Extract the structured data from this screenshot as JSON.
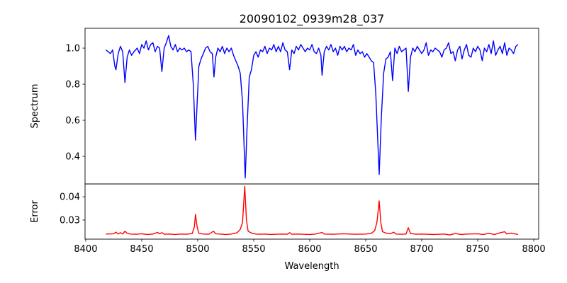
{
  "chart_data": [
    {
      "type": "line",
      "title": "20090102_0939m28_037",
      "xlabel": "",
      "ylabel": "Spectrum",
      "xlim": [
        8399.4,
        8804.4
      ],
      "ylim": [
        0.247,
        1.11
      ],
      "yticks": [
        0.4,
        0.6,
        0.8,
        1.0
      ],
      "ytick_labels": [
        "0.4",
        "0.6",
        "0.8",
        "1.0"
      ],
      "grid": false,
      "series": [
        {
          "name": "spectrum",
          "color": "#0000ff",
          "x": [
            8418,
            8420,
            8422,
            8424,
            8426,
            8427,
            8429,
            8431,
            8433,
            8435,
            8437,
            8439,
            8441,
            8443,
            8446,
            8448,
            8450,
            8452,
            8454,
            8456,
            8458,
            8460,
            8462,
            8464,
            8466,
            8468,
            8470,
            8472,
            8474,
            8476,
            8478,
            8480,
            8482,
            8484,
            8486,
            8488,
            8490,
            8492,
            8494,
            8496,
            8498,
            8499.5,
            8501,
            8503,
            8505,
            8507,
            8509,
            8511,
            8513,
            8514.5,
            8516,
            8518,
            8520,
            8522,
            8524,
            8526,
            8528,
            8530,
            8532,
            8534,
            8536,
            8538,
            8540,
            8542.4,
            8544,
            8546,
            8548,
            8550,
            8552,
            8554,
            8556,
            8558,
            8560,
            8562,
            8564,
            8566,
            8568,
            8570,
            8572,
            8574,
            8576,
            8578,
            8580,
            8582,
            8584,
            8586,
            8588,
            8590,
            8592,
            8594,
            8596,
            8598,
            8600,
            8602,
            8604,
            8606,
            8608,
            8610,
            8611,
            8613,
            8615,
            8617,
            8619,
            8621,
            8623,
            8625,
            8627,
            8629,
            8631,
            8633,
            8635,
            8637,
            8639,
            8641,
            8643,
            8645,
            8647,
            8649,
            8651,
            8653,
            8655,
            8657,
            8659,
            8662,
            8664,
            8666,
            8668,
            8670,
            8672,
            8674,
            8676,
            8678,
            8680,
            8682,
            8684,
            8686,
            8688,
            8690,
            8692,
            8694,
            8696,
            8698,
            8700,
            8702,
            8704,
            8706,
            8708,
            8710,
            8712,
            8714,
            8716,
            8718,
            8720,
            8722,
            8724,
            8726,
            8728,
            8730,
            8732,
            8734,
            8736,
            8738,
            8740,
            8742,
            8744,
            8746,
            8748,
            8750,
            8752,
            8754,
            8756,
            8758,
            8760,
            8762,
            8764,
            8766,
            8768,
            8770,
            8772,
            8774,
            8776,
            8778,
            8780,
            8782,
            8784,
            8786
          ],
          "y": [
            0.99,
            0.98,
            0.97,
            0.99,
            0.9,
            0.88,
            0.97,
            1.01,
            0.98,
            0.81,
            0.95,
            0.99,
            0.96,
            0.98,
            1.0,
            0.97,
            1.02,
            1.0,
            1.04,
            0.99,
            1.02,
            1.03,
            0.98,
            1.01,
            1.0,
            0.87,
            1.0,
            1.03,
            1.07,
            1.01,
            0.99,
            1.02,
            0.98,
            1.0,
            0.99,
            1.0,
            0.98,
            0.99,
            0.98,
            0.8,
            0.49,
            0.7,
            0.9,
            0.94,
            0.97,
            1.0,
            1.01,
            0.98,
            0.97,
            0.84,
            0.95,
            1.0,
            0.98,
            1.01,
            0.97,
            1.0,
            0.98,
            1.0,
            0.96,
            0.93,
            0.9,
            0.86,
            0.7,
            0.28,
            0.55,
            0.84,
            0.88,
            0.96,
            0.98,
            0.95,
            0.99,
            0.98,
            1.01,
            0.97,
            1.0,
            0.99,
            1.02,
            0.98,
            1.01,
            0.98,
            1.03,
            0.99,
            0.98,
            0.88,
            0.99,
            0.97,
            1.01,
            0.99,
            1.02,
            1.0,
            0.98,
            1.0,
            0.99,
            1.02,
            0.98,
            0.97,
            1.0,
            0.96,
            0.85,
            0.98,
            1.01,
            0.99,
            1.02,
            0.98,
            1.0,
            0.96,
            1.01,
            0.99,
            1.01,
            0.98,
            1.0,
            0.99,
            1.02,
            0.96,
            0.99,
            0.97,
            0.98,
            0.95,
            0.97,
            0.95,
            0.93,
            0.92,
            0.75,
            0.3,
            0.62,
            0.86,
            0.94,
            0.95,
            0.98,
            0.82,
            1.0,
            0.97,
            1.01,
            0.98,
            0.99,
            1.0,
            0.76,
            0.95,
            1.0,
            0.98,
            1.01,
            0.99,
            0.97,
            0.99,
            1.03,
            0.96,
            0.99,
            0.98,
            1.0,
            0.99,
            0.98,
            0.95,
            0.99,
            1.0,
            1.03,
            0.97,
            0.98,
            0.93,
            0.99,
            1.01,
            0.94,
            0.99,
            1.02,
            0.96,
            0.95,
            1.0,
            0.98,
            1.01,
            0.99,
            0.93,
            1.0,
            0.98,
            1.02,
            0.97,
            1.04,
            0.96,
            0.99,
            1.01,
            0.97,
            1.03,
            0.96,
            1.0,
            0.99,
            0.97,
            1.01,
            1.02
          ]
        }
      ]
    },
    {
      "type": "line",
      "title": "",
      "xlabel": "Wavelength",
      "ylabel": "Error",
      "xlim": [
        8399.4,
        8804.4
      ],
      "ylim": [
        0.0218,
        0.0455
      ],
      "xticks": [
        8400,
        8450,
        8500,
        8550,
        8600,
        8650,
        8700,
        8750,
        8800
      ],
      "xtick_labels": [
        "8400",
        "8450",
        "8500",
        "8550",
        "8600",
        "8650",
        "8700",
        "8750",
        "8800"
      ],
      "yticks": [
        0.03,
        0.04
      ],
      "ytick_labels": [
        "0.03",
        "0.04"
      ],
      "grid": false,
      "series": [
        {
          "name": "error",
          "color": "#ff0000",
          "x": [
            8418,
            8425,
            8427,
            8429,
            8431,
            8433,
            8435,
            8437,
            8440,
            8445,
            8450,
            8455,
            8460,
            8464,
            8466,
            8468,
            8470,
            8475,
            8480,
            8485,
            8490,
            8495,
            8497,
            8498,
            8499.5,
            8501,
            8505,
            8510,
            8514,
            8516,
            8520,
            8525,
            8530,
            8535,
            8538,
            8540,
            8542,
            8543.5,
            8545,
            8548,
            8552,
            8555,
            8560,
            8565,
            8570,
            8575,
            8580,
            8582,
            8584,
            8590,
            8600,
            8605,
            8611,
            8613,
            8620,
            8630,
            8640,
            8650,
            8655,
            8658,
            8660,
            8662,
            8663.5,
            8665,
            8668,
            8672,
            8675,
            8677,
            8682,
            8686,
            8688,
            8690,
            8695,
            8700,
            8710,
            8720,
            8725,
            8730,
            8735,
            8740,
            8750,
            8755,
            8760,
            8765,
            8770,
            8774,
            8776,
            8780,
            8786
          ],
          "y": [
            0.024,
            0.0241,
            0.0248,
            0.024,
            0.0246,
            0.024,
            0.0252,
            0.0243,
            0.024,
            0.0239,
            0.0241,
            0.0238,
            0.024,
            0.0247,
            0.0241,
            0.0246,
            0.0239,
            0.024,
            0.0238,
            0.024,
            0.0239,
            0.0242,
            0.027,
            0.0324,
            0.027,
            0.0243,
            0.024,
            0.0239,
            0.0252,
            0.0241,
            0.024,
            0.0238,
            0.024,
            0.0245,
            0.026,
            0.029,
            0.0445,
            0.03,
            0.0252,
            0.0244,
            0.024,
            0.0239,
            0.024,
            0.0238,
            0.0239,
            0.024,
            0.0239,
            0.0246,
            0.0239,
            0.024,
            0.0238,
            0.024,
            0.0247,
            0.024,
            0.0239,
            0.0241,
            0.0239,
            0.024,
            0.0243,
            0.0255,
            0.029,
            0.0382,
            0.029,
            0.025,
            0.0244,
            0.0241,
            0.0248,
            0.024,
            0.0239,
            0.024,
            0.0267,
            0.0242,
            0.0239,
            0.024,
            0.0238,
            0.024,
            0.0236,
            0.0242,
            0.0238,
            0.024,
            0.0241,
            0.0238,
            0.0243,
            0.0238,
            0.0245,
            0.025,
            0.024,
            0.0244,
            0.0238
          ]
        }
      ]
    }
  ]
}
